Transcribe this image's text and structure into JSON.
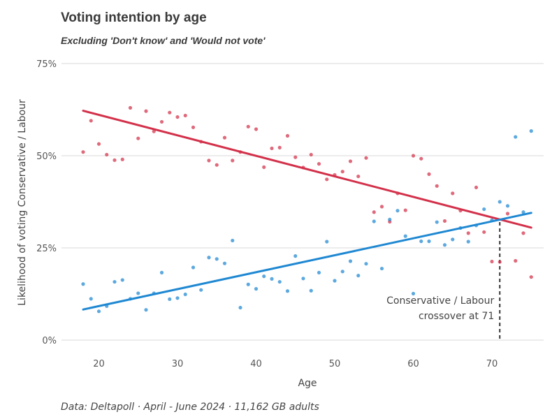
{
  "chart_data": {
    "type": "scatter",
    "title": "Voting intention by age",
    "subtitle": "Excluding 'Don't know' and 'Would not vote'",
    "xlabel": "Age",
    "ylabel": "Likelihood of voting Conservative / Labour",
    "caption": "Data: Deltapoll · April - June 2024 · 11,162 GB adults",
    "xlim": [
      16,
      77
    ],
    "ylim": [
      0,
      0.75
    ],
    "x_ticks": [
      20,
      30,
      40,
      50,
      60,
      70
    ],
    "y_ticks": [
      {
        "value": 0,
        "label": "0%"
      },
      {
        "value": 0.25,
        "label": "25%"
      },
      {
        "value": 0.5,
        "label": "50%"
      },
      {
        "value": 0.75,
        "label": "75%"
      }
    ],
    "grid": "horizontal",
    "legend": "none",
    "series": [
      {
        "color": "#d3314a",
        "points": [
          [
            18,
            0.51
          ],
          [
            19,
            0.595
          ],
          [
            20,
            0.532
          ],
          [
            21,
            0.503
          ],
          [
            22,
            0.488
          ],
          [
            23,
            0.49
          ],
          [
            24,
            0.63
          ],
          [
            25,
            0.547
          ],
          [
            26,
            0.621
          ],
          [
            27,
            0.566
          ],
          [
            28,
            0.592
          ],
          [
            29,
            0.617
          ],
          [
            30,
            0.605
          ],
          [
            31,
            0.609
          ],
          [
            32,
            0.577
          ],
          [
            33,
            0.538
          ],
          [
            34,
            0.487
          ],
          [
            35,
            0.475
          ],
          [
            36,
            0.549
          ],
          [
            37,
            0.487
          ],
          [
            38,
            0.51
          ],
          [
            39,
            0.579
          ],
          [
            40,
            0.572
          ],
          [
            41,
            0.469
          ],
          [
            42,
            0.52
          ],
          [
            43,
            0.522
          ],
          [
            44,
            0.554
          ],
          [
            45,
            0.496
          ],
          [
            46,
            0.468
          ],
          [
            47,
            0.503
          ],
          [
            48,
            0.478
          ],
          [
            49,
            0.436
          ],
          [
            50,
            0.448
          ],
          [
            51,
            0.457
          ],
          [
            52,
            0.485
          ],
          [
            53,
            0.444
          ],
          [
            54,
            0.494
          ],
          [
            55,
            0.347
          ],
          [
            56,
            0.362
          ],
          [
            57,
            0.321
          ],
          [
            58,
            0.398
          ],
          [
            59,
            0.352
          ],
          [
            60,
            0.5
          ],
          [
            61,
            0.492
          ],
          [
            62,
            0.45
          ],
          [
            63,
            0.418
          ],
          [
            64,
            0.323
          ],
          [
            65,
            0.398
          ],
          [
            66,
            0.351
          ],
          [
            67,
            0.29
          ],
          [
            68,
            0.414
          ],
          [
            69,
            0.293
          ],
          [
            70,
            0.213
          ],
          [
            71,
            0.212
          ],
          [
            72,
            0.343
          ],
          [
            73,
            0.215
          ],
          [
            74,
            0.29
          ],
          [
            75,
            0.171
          ]
        ],
        "trend": {
          "x": [
            18,
            75
          ],
          "y": [
            0.622,
            0.305
          ]
        }
      },
      {
        "color": "#1f88d2",
        "points": [
          [
            18,
            0.152
          ],
          [
            19,
            0.112
          ],
          [
            20,
            0.078
          ],
          [
            21,
            0.092
          ],
          [
            22,
            0.158
          ],
          [
            23,
            0.163
          ],
          [
            24,
            0.112
          ],
          [
            25,
            0.127
          ],
          [
            26,
            0.082
          ],
          [
            27,
            0.127
          ],
          [
            28,
            0.183
          ],
          [
            29,
            0.111
          ],
          [
            30,
            0.114
          ],
          [
            31,
            0.124
          ],
          [
            32,
            0.197
          ],
          [
            33,
            0.136
          ],
          [
            34,
            0.224
          ],
          [
            35,
            0.22
          ],
          [
            36,
            0.208
          ],
          [
            37,
            0.27
          ],
          [
            38,
            0.088
          ],
          [
            39,
            0.151
          ],
          [
            40,
            0.139
          ],
          [
            41,
            0.173
          ],
          [
            42,
            0.166
          ],
          [
            43,
            0.158
          ],
          [
            44,
            0.133
          ],
          [
            45,
            0.228
          ],
          [
            46,
            0.167
          ],
          [
            47,
            0.134
          ],
          [
            48,
            0.183
          ],
          [
            49,
            0.267
          ],
          [
            50,
            0.161
          ],
          [
            51,
            0.186
          ],
          [
            52,
            0.214
          ],
          [
            53,
            0.175
          ],
          [
            54,
            0.207
          ],
          [
            55,
            0.322
          ],
          [
            56,
            0.194
          ],
          [
            57,
            0.327
          ],
          [
            58,
            0.351
          ],
          [
            59,
            0.282
          ],
          [
            60,
            0.126
          ],
          [
            61,
            0.268
          ],
          [
            62,
            0.268
          ],
          [
            63,
            0.32
          ],
          [
            64,
            0.258
          ],
          [
            65,
            0.273
          ],
          [
            66,
            0.304
          ],
          [
            67,
            0.267
          ],
          [
            68,
            0.311
          ],
          [
            69,
            0.355
          ],
          [
            70,
            0.325
          ],
          [
            71,
            0.375
          ],
          [
            72,
            0.364
          ],
          [
            73,
            0.551
          ],
          [
            74,
            0.347
          ],
          [
            75,
            0.567
          ]
        ],
        "trend": {
          "x": [
            18,
            75
          ],
          "y": [
            0.083,
            0.345
          ]
        }
      }
    ],
    "annotation": {
      "lines": [
        "Conservative / Labour",
        "crossover at 71"
      ],
      "x": 71
    }
  }
}
